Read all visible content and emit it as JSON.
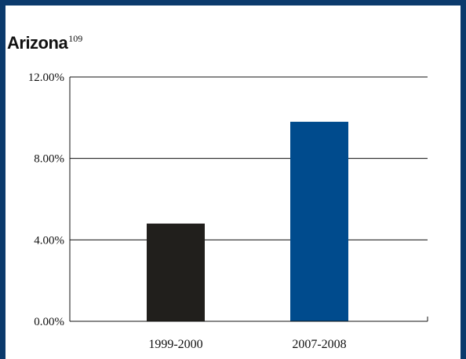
{
  "chart_data": {
    "type": "bar",
    "title": "Arizona",
    "title_note": "109",
    "categories": [
      "1999-2000",
      "2007-2008"
    ],
    "values": [
      4.8,
      9.8
    ],
    "bar_colors": [
      "#211f1c",
      "#004b8d"
    ],
    "yticks": [
      "0.00%",
      "4.00%",
      "8.00%",
      "12.00%"
    ],
    "ylim": [
      0,
      12
    ],
    "grid": true,
    "legend": "none",
    "xlabel": "",
    "ylabel": ""
  }
}
